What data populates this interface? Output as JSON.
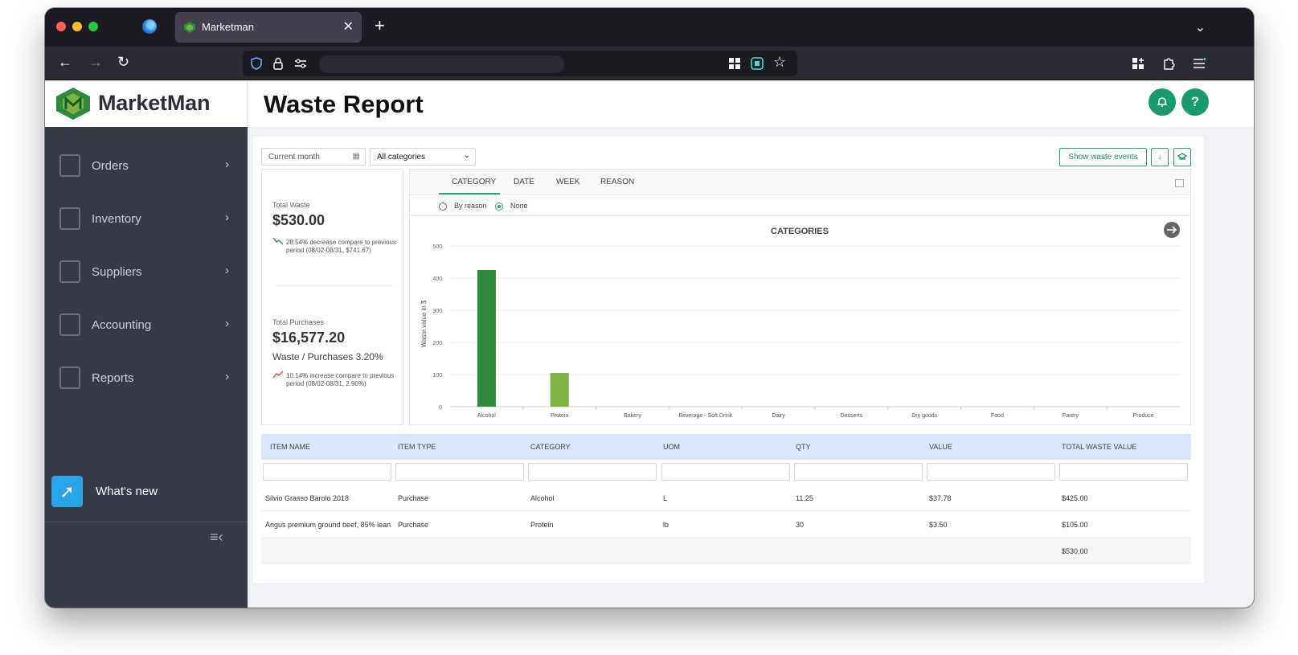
{
  "browser": {
    "tab_title": "Marketman",
    "tab_close": "✕",
    "new_tab": "+",
    "tab_list": "⌄",
    "back": "←",
    "forward": "→",
    "reload": "↻"
  },
  "app": {
    "logo_text": "MarketMan",
    "page_title": "Waste Report",
    "brand_color": "#1a9b6e"
  },
  "sidebar": {
    "items": [
      {
        "label": "Orders",
        "icon": "cart-icon"
      },
      {
        "label": "Inventory",
        "icon": "clipboard-icon"
      },
      {
        "label": "Suppliers",
        "icon": "truck-icon"
      },
      {
        "label": "Accounting",
        "icon": "ledger-icon"
      },
      {
        "label": "Reports",
        "icon": "bar-chart-icon"
      }
    ],
    "chevron": "›",
    "whats_new": "What's new",
    "collapse": "≡‹"
  },
  "toolbar": {
    "date_filter": "Current month",
    "category_filter": "All categories",
    "show_waste_events": "Show waste events",
    "download": "↓"
  },
  "summary": {
    "total_waste_label": "Total Waste",
    "total_waste_value": "$530.00",
    "waste_note": "28.54% decrease compare to previous period (08/02-08/31, $741.67)",
    "total_purchases_label": "Total Purchases",
    "total_purchases_value": "$16,577.20",
    "ratio": "Waste / Purchases 3.20%",
    "purchase_note": "10.14% increase compare to previous period (08/02-08/31, 2.90%)"
  },
  "chart_tabs": [
    "CATEGORY",
    "DATE",
    "WEEK",
    "REASON"
  ],
  "radio": {
    "by_reason": "By reason",
    "none": "None"
  },
  "chart_data": {
    "type": "bar",
    "title": "CATEGORIES",
    "ylabel": "Waste value in $",
    "xlabel": "",
    "categories": [
      "Alcohol",
      "Protein",
      "Bakery",
      "Beverage - Soft Drink",
      "Dairy",
      "Desserts",
      "Dry goods",
      "Food",
      "Pantry",
      "Produce"
    ],
    "values": [
      425,
      105,
      0,
      0,
      0,
      0,
      0,
      0,
      0,
      0
    ],
    "colors": [
      "#2e8b3e",
      "#7cb342",
      "#2e8b3e",
      "#2e8b3e",
      "#2e8b3e",
      "#2e8b3e",
      "#2e8b3e",
      "#2e8b3e",
      "#2e8b3e",
      "#2e8b3e"
    ],
    "ylim": [
      0,
      500
    ],
    "yticks": [
      0,
      100,
      200,
      300,
      400,
      500
    ],
    "grid": true
  },
  "table": {
    "columns": [
      "ITEM NAME",
      "ITEM TYPE",
      "CATEGORY",
      "UOM",
      "QTY",
      "VALUE",
      "TOTAL WASTE VALUE"
    ],
    "rows": [
      [
        "Silvio Grasso Barolo 2018",
        "Purchase",
        "Alcohol",
        "L",
        "11.25",
        "$37.78",
        "$425.00"
      ],
      [
        "Angus premium ground beef, 85% lean",
        "Purchase",
        "Protein",
        "lb",
        "30",
        "$3.50",
        "$105.00"
      ]
    ],
    "total": "$530.00"
  }
}
